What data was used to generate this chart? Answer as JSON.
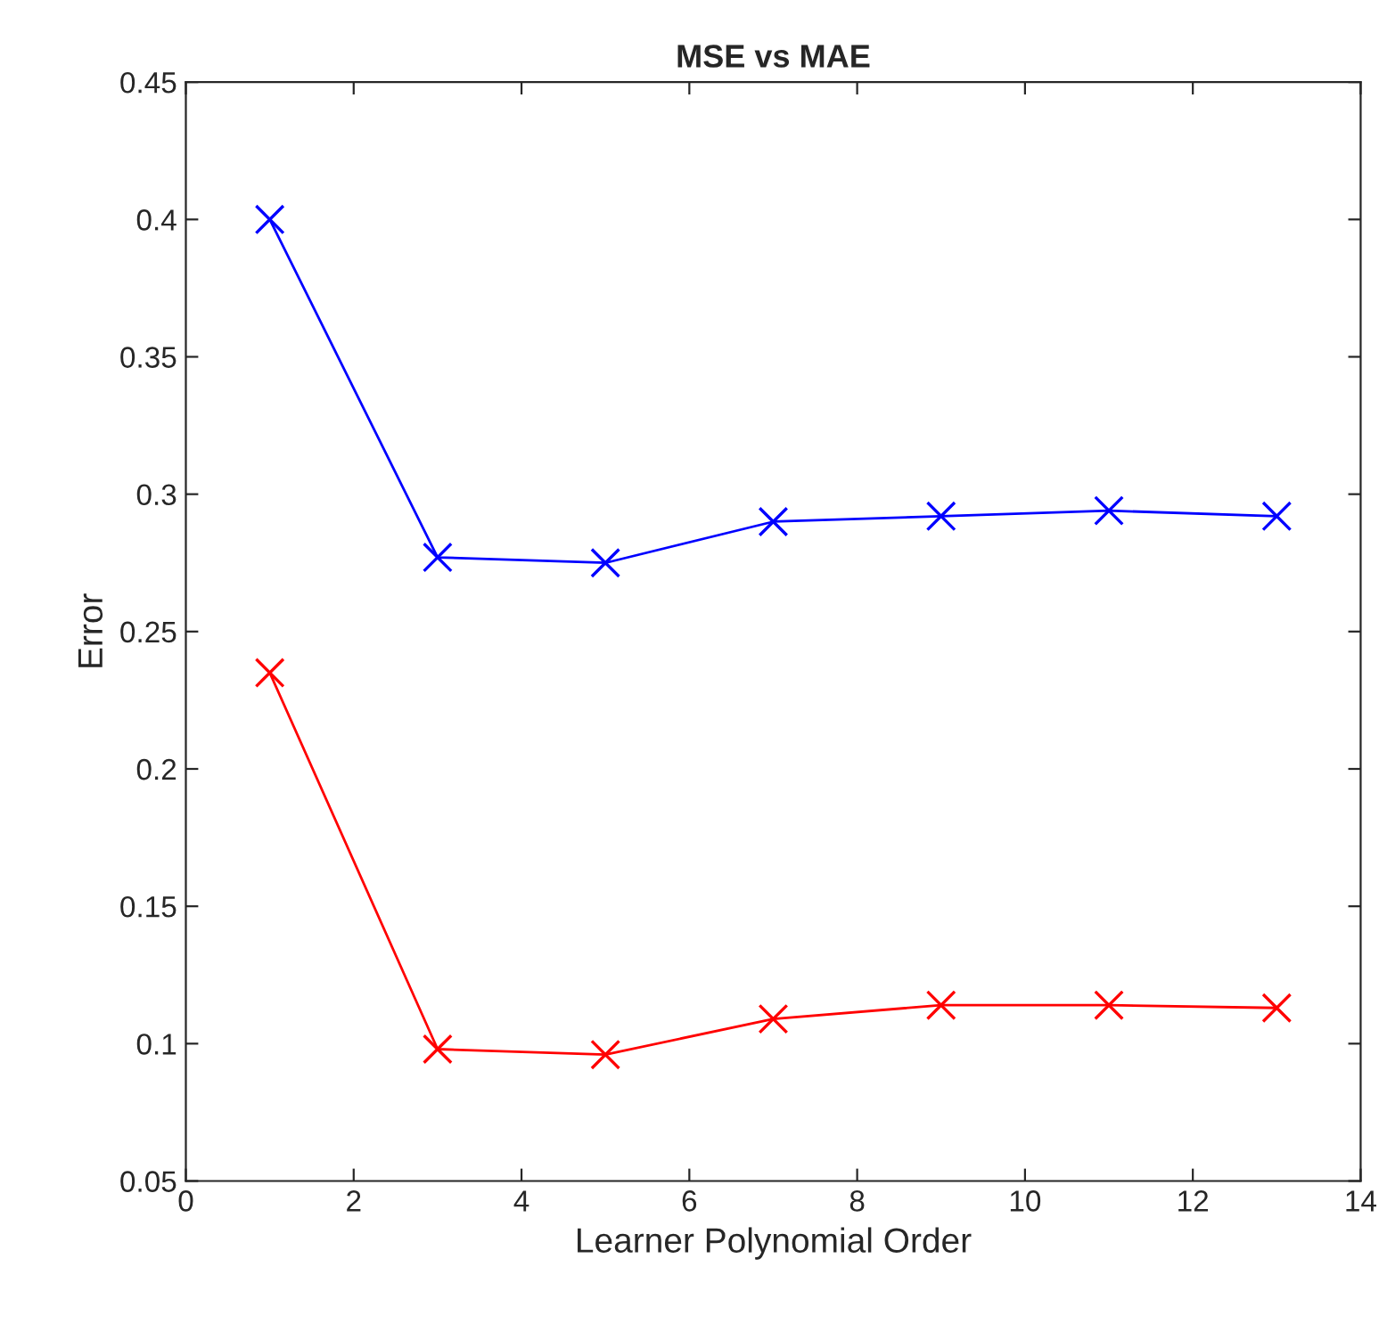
{
  "chart_data": {
    "type": "line",
    "title": "MSE vs MAE",
    "xlabel": "Learner Polynomial Order",
    "ylabel": "Error",
    "x": [
      1,
      3,
      5,
      7,
      9,
      11,
      13
    ],
    "series": [
      {
        "color": "#0000ff",
        "values": [
          0.4,
          0.277,
          0.275,
          0.29,
          0.292,
          0.294,
          0.292
        ]
      },
      {
        "color": "#ff0000",
        "values": [
          0.235,
          0.098,
          0.096,
          0.109,
          0.114,
          0.114,
          0.113
        ]
      }
    ],
    "xlim": [
      0,
      14
    ],
    "xticks": [
      0,
      2,
      4,
      6,
      8,
      10,
      12,
      14
    ],
    "ylim": [
      0.05,
      0.45
    ],
    "yticks": [
      0.05,
      0.1,
      0.15,
      0.2,
      0.25,
      0.3,
      0.35,
      0.4,
      0.45
    ],
    "grid": false,
    "legend": false,
    "marker": "cross",
    "line_style": "solid"
  }
}
